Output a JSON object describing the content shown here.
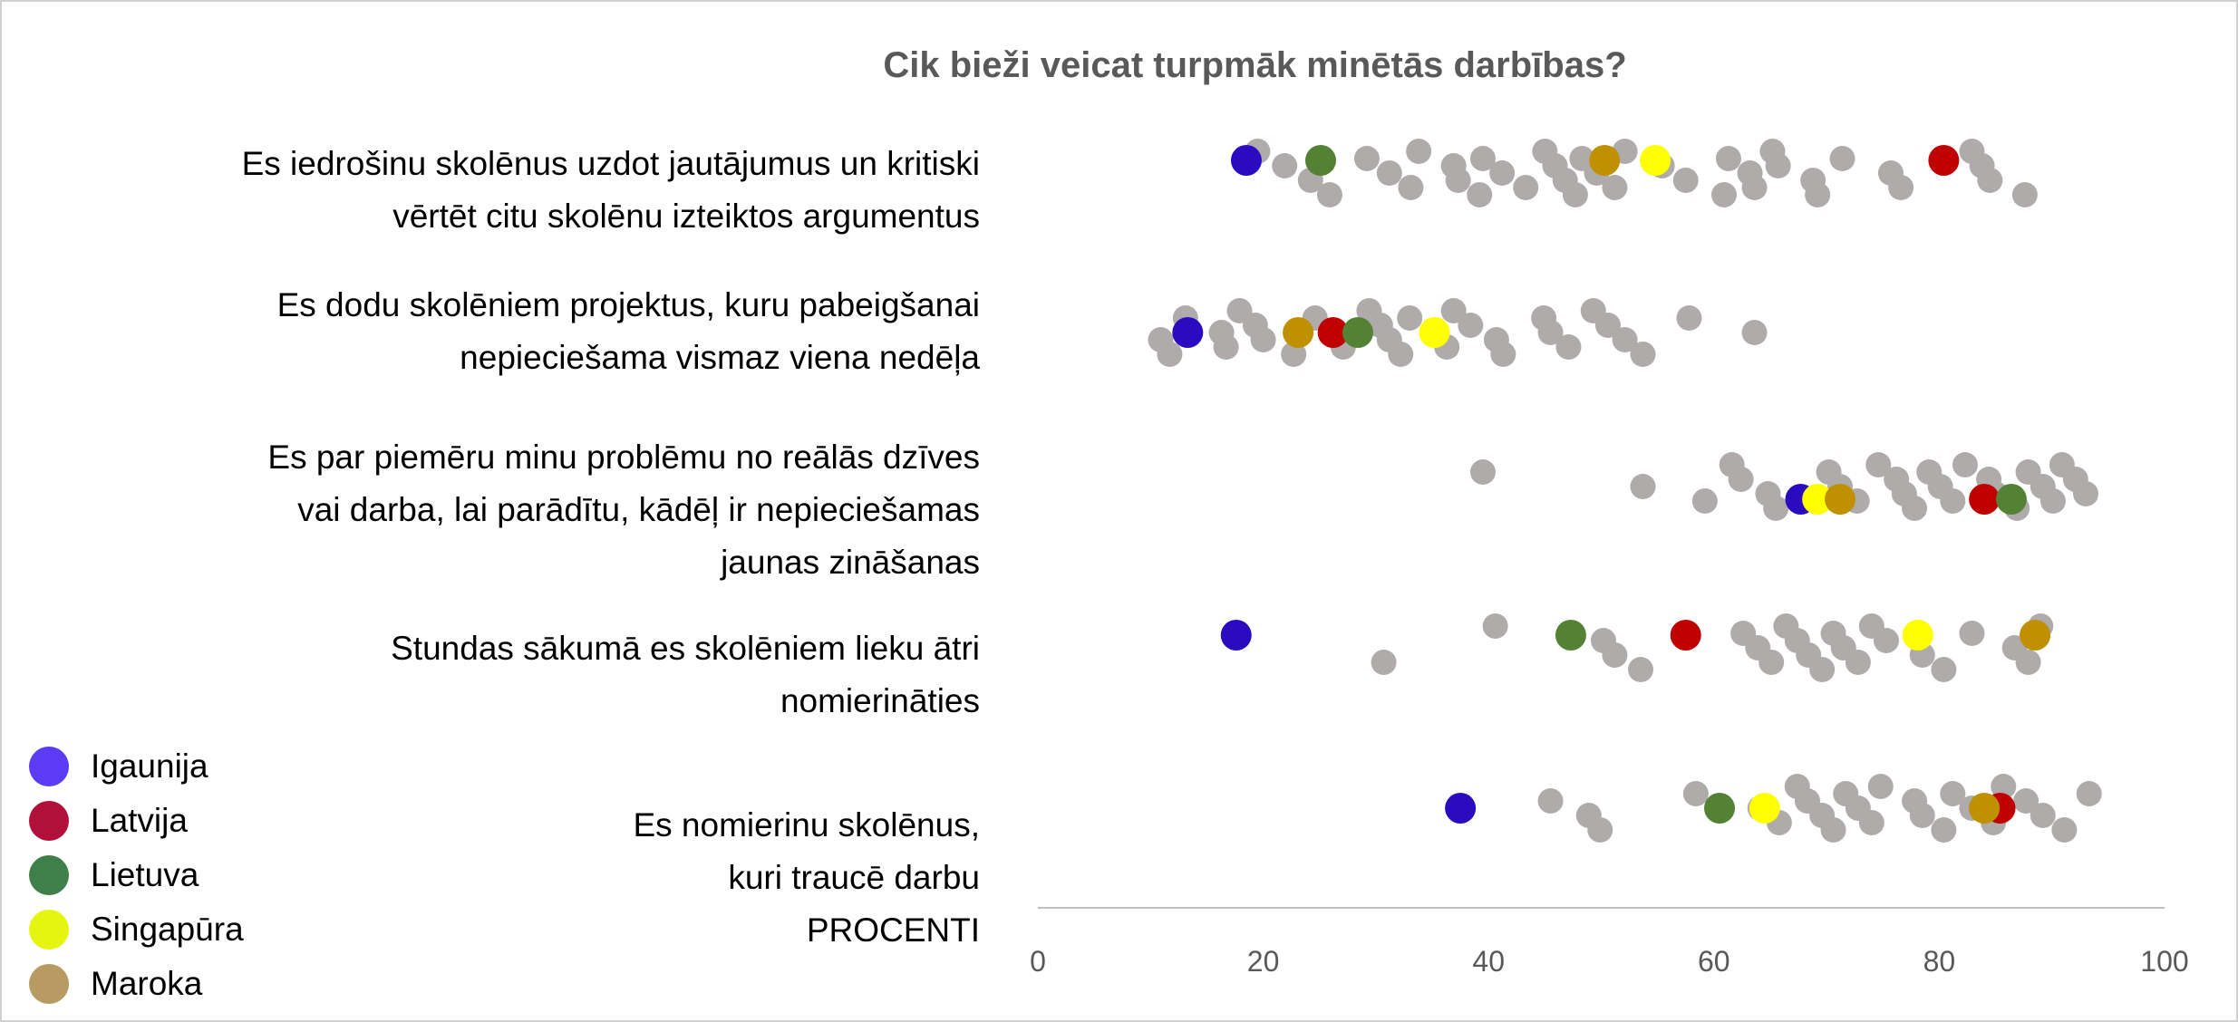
{
  "chart_data": {
    "type": "scatter",
    "title": "Cik bieži veicat turpmāk minētās darbības?",
    "xlabel": "PROCENTI",
    "xlim": [
      0,
      100
    ],
    "xticks": [
      "0",
      "20",
      "40",
      "60",
      "80",
      "100"
    ],
    "categories": [
      [
        "Es iedrošinu skolēnus uzdot jautājumus un kritiski",
        "vērtēt citu skolēnu izteiktos argumentus"
      ],
      [
        "Es dodu skolēniem projektus, kuru pabeigšanai",
        "nepieciešama vismaz viena nedēļa"
      ],
      [
        "Es par piemēru minu problēmu no reālās dzīves",
        "vai darba, lai parādītu, kādēļ ir nepieciešamas",
        "jaunas zināšanas"
      ],
      [
        "Stundas sākumā es skolēniem lieku ātri",
        "nomierināties"
      ],
      [
        "Es nomierinu skolēnus,",
        "kuri traucē darbu"
      ]
    ],
    "other_countries": [
      [
        19.5,
        21.9,
        24.2,
        25.9,
        29.2,
        31.2,
        33.1,
        33.8,
        36.9,
        37.3,
        39.2,
        39.5,
        41.2,
        43.3,
        45.0,
        45.9,
        46.8,
        47.7,
        48.3,
        49.6,
        51.2,
        52.1,
        55.4,
        57.5,
        60.9,
        61.3,
        63.2,
        63.6,
        65.2,
        65.7,
        68.8,
        69.2,
        71.4,
        75.7,
        76.6,
        82.9,
        83.8,
        84.5,
        87.6
      ],
      [
        10.9,
        11.7,
        13.1,
        16.3,
        16.7,
        17.9,
        19.3,
        20.0,
        22.7,
        24.6,
        26.2,
        27.1,
        29.4,
        30.4,
        31.2,
        32.2,
        33.0,
        35.4,
        36.3,
        36.9,
        38.4,
        40.7,
        41.3,
        44.9,
        45.5,
        47.1,
        49.3,
        50.6,
        52.1,
        53.7,
        57.8,
        63.6
      ],
      [
        39.5,
        53.7,
        59.2,
        61.6,
        62.4,
        64.8,
        65.5,
        70.2,
        71.2,
        72.7,
        74.6,
        76.2,
        76.9,
        77.8,
        79.1,
        80.1,
        81.2,
        82.3,
        84.4,
        85.0,
        86.9,
        87.9,
        89.2,
        90.1,
        90.9,
        92.1,
        93.0
      ],
      [
        30.7,
        40.6,
        50.2,
        51.2,
        53.5,
        62.6,
        63.9,
        65.1,
        66.4,
        67.4,
        68.4,
        69.6,
        70.6,
        71.5,
        72.8,
        74.0,
        75.3,
        78.5,
        80.4,
        82.9,
        86.7,
        87.9,
        89.0
      ],
      [
        45.5,
        48.9,
        49.9,
        58.4,
        64.1,
        65.8,
        67.4,
        68.3,
        69.6,
        70.6,
        71.7,
        72.8,
        74.0,
        74.8,
        77.8,
        78.5,
        80.4,
        81.2,
        82.9,
        84.8,
        85.7,
        87.7,
        89.2,
        91.1,
        93.3
      ]
    ],
    "other_color": "#AFABAB",
    "series": [
      {
        "name": "Igaunija",
        "color": "#2A0BBF",
        "legend_color": "#5B3BF5",
        "values": [
          18.5,
          13.3,
          67.7,
          17.6,
          37.5
        ]
      },
      {
        "name": "Latvija",
        "color": "#C00000",
        "legend_color": "#B0103A",
        "values": [
          80.4,
          26.2,
          84.0,
          57.5,
          85.4
        ]
      },
      {
        "name": "Lietuva",
        "color": "#548235",
        "legend_color": "#3F7F4A",
        "values": [
          25.1,
          28.4,
          86.4,
          47.3,
          60.5
        ]
      },
      {
        "name": "Singapūra",
        "color": "#FFFF00",
        "legend_color": "#E5F510",
        "values": [
          54.8,
          35.2,
          69.2,
          78.1,
          64.5
        ]
      },
      {
        "name": "Maroka",
        "color": "#BF9000",
        "legend_color": "#B89A63",
        "values": [
          50.3,
          23.1,
          71.2,
          88.5,
          84.0
        ]
      }
    ],
    "legend_position": "bottom-left"
  }
}
